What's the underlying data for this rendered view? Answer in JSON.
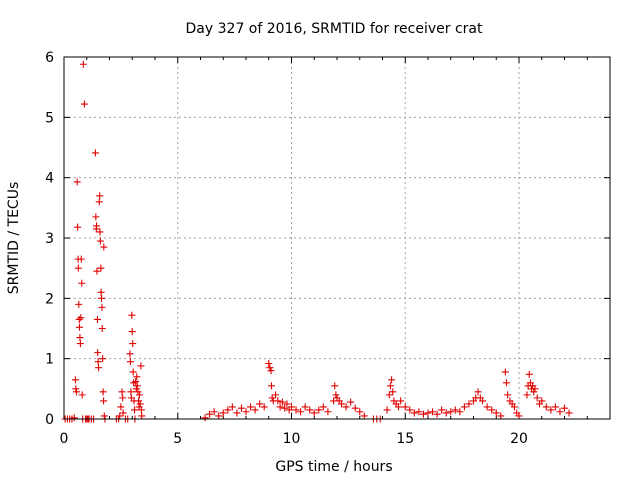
{
  "chart_data": {
    "type": "scatter",
    "title": "Day 327 of 2016, SRMTID for receiver crat",
    "xlabel": "GPS time / hours",
    "ylabel": "SRMTID / TECUs",
    "xlim": [
      0,
      24
    ],
    "ylim": [
      0,
      6
    ],
    "xticks": [
      "0",
      "5",
      "10",
      "15",
      "20"
    ],
    "yticks": [
      "0",
      "1",
      "2",
      "3",
      "4",
      "5",
      "6"
    ],
    "grid": true,
    "marker": "+",
    "color": "#e00000",
    "series": [
      {
        "name": "SRMTID",
        "points": [
          [
            0.05,
            0.0
          ],
          [
            0.15,
            0.0
          ],
          [
            0.25,
            0.0
          ],
          [
            0.35,
            0.0
          ],
          [
            0.45,
            0.02
          ],
          [
            0.5,
            0.65
          ],
          [
            0.52,
            0.5
          ],
          [
            0.55,
            0.45
          ],
          [
            0.58,
            3.93
          ],
          [
            0.6,
            3.18
          ],
          [
            0.62,
            2.65
          ],
          [
            0.63,
            2.5
          ],
          [
            0.65,
            1.9
          ],
          [
            0.67,
            1.65
          ],
          [
            0.68,
            1.52
          ],
          [
            0.7,
            1.35
          ],
          [
            0.72,
            1.25
          ],
          [
            0.74,
            1.68
          ],
          [
            0.76,
            2.65
          ],
          [
            0.78,
            2.25
          ],
          [
            0.8,
            0.4
          ],
          [
            0.82,
            0.0
          ],
          [
            0.85,
            5.88
          ],
          [
            0.9,
            5.22
          ],
          [
            0.95,
            0.0
          ],
          [
            1.0,
            0.0
          ],
          [
            1.05,
            0.0
          ],
          [
            1.1,
            0.0
          ],
          [
            1.2,
            0.0
          ],
          [
            1.3,
            0.0
          ],
          [
            1.38,
            4.41
          ],
          [
            1.4,
            3.35
          ],
          [
            1.42,
            3.15
          ],
          [
            1.43,
            3.2
          ],
          [
            1.45,
            2.45
          ],
          [
            1.47,
            1.65
          ],
          [
            1.48,
            1.1
          ],
          [
            1.5,
            0.95
          ],
          [
            1.52,
            0.85
          ],
          [
            1.55,
            3.6
          ],
          [
            1.57,
            3.7
          ],
          [
            1.58,
            3.1
          ],
          [
            1.6,
            2.95
          ],
          [
            1.62,
            2.5
          ],
          [
            1.63,
            2.1
          ],
          [
            1.65,
            2.0
          ],
          [
            1.67,
            1.85
          ],
          [
            1.68,
            1.5
          ],
          [
            1.7,
            1.0
          ],
          [
            1.72,
            0.45
          ],
          [
            1.74,
            0.3
          ],
          [
            1.75,
            2.85
          ],
          [
            1.77,
            0.05
          ],
          [
            1.8,
            0.0
          ],
          [
            2.3,
            0.0
          ],
          [
            2.4,
            0.0
          ],
          [
            2.45,
            0.05
          ],
          [
            2.5,
            0.2
          ],
          [
            2.55,
            0.45
          ],
          [
            2.58,
            0.35
          ],
          [
            2.6,
            0.1
          ],
          [
            2.7,
            0.0
          ],
          [
            2.8,
            0.0
          ],
          [
            2.9,
            1.08
          ],
          [
            2.92,
            0.95
          ],
          [
            2.94,
            0.45
          ],
          [
            2.96,
            0.35
          ],
          [
            2.98,
            1.72
          ],
          [
            3.0,
            1.45
          ],
          [
            3.02,
            1.25
          ],
          [
            3.04,
            0.78
          ],
          [
            3.06,
            0.6
          ],
          [
            3.08,
            0.3
          ],
          [
            3.1,
            0.15
          ],
          [
            3.12,
            0.0
          ],
          [
            3.15,
            0.62
          ],
          [
            3.18,
            0.5
          ],
          [
            3.2,
            0.7
          ],
          [
            3.22,
            0.55
          ],
          [
            3.25,
            0.45
          ],
          [
            3.28,
            0.3
          ],
          [
            3.3,
            0.2
          ],
          [
            3.32,
            0.4
          ],
          [
            3.35,
            0.25
          ],
          [
            3.38,
            0.88
          ],
          [
            3.4,
            0.15
          ],
          [
            3.42,
            0.05
          ],
          [
            6.2,
            0.02
          ],
          [
            6.4,
            0.08
          ],
          [
            6.6,
            0.12
          ],
          [
            6.8,
            0.05
          ],
          [
            7.0,
            0.1
          ],
          [
            7.2,
            0.15
          ],
          [
            7.4,
            0.2
          ],
          [
            7.6,
            0.1
          ],
          [
            7.8,
            0.18
          ],
          [
            8.0,
            0.12
          ],
          [
            8.2,
            0.2
          ],
          [
            8.4,
            0.15
          ],
          [
            8.6,
            0.25
          ],
          [
            8.8,
            0.2
          ],
          [
            9.0,
            0.92
          ],
          [
            9.05,
            0.85
          ],
          [
            9.1,
            0.8
          ],
          [
            9.12,
            0.55
          ],
          [
            9.15,
            0.35
          ],
          [
            9.2,
            0.3
          ],
          [
            9.3,
            0.4
          ],
          [
            9.4,
            0.3
          ],
          [
            9.5,
            0.2
          ],
          [
            9.6,
            0.28
          ],
          [
            9.7,
            0.18
          ],
          [
            9.8,
            0.25
          ],
          [
            9.9,
            0.15
          ],
          [
            10.0,
            0.2
          ],
          [
            10.2,
            0.15
          ],
          [
            10.4,
            0.12
          ],
          [
            10.6,
            0.2
          ],
          [
            10.8,
            0.15
          ],
          [
            11.0,
            0.1
          ],
          [
            11.2,
            0.15
          ],
          [
            11.4,
            0.2
          ],
          [
            11.6,
            0.12
          ],
          [
            11.85,
            0.3
          ],
          [
            11.9,
            0.55
          ],
          [
            11.95,
            0.4
          ],
          [
            12.0,
            0.35
          ],
          [
            12.1,
            0.3
          ],
          [
            12.2,
            0.25
          ],
          [
            12.4,
            0.2
          ],
          [
            12.6,
            0.28
          ],
          [
            12.8,
            0.18
          ],
          [
            13.0,
            0.12
          ],
          [
            13.2,
            0.05
          ],
          [
            13.6,
            0.0
          ],
          [
            13.75,
            0.0
          ],
          [
            13.9,
            0.0
          ],
          [
            14.2,
            0.15
          ],
          [
            14.3,
            0.4
          ],
          [
            14.35,
            0.55
          ],
          [
            14.4,
            0.65
          ],
          [
            14.45,
            0.45
          ],
          [
            14.5,
            0.3
          ],
          [
            14.6,
            0.25
          ],
          [
            14.7,
            0.2
          ],
          [
            14.8,
            0.3
          ],
          [
            15.0,
            0.2
          ],
          [
            15.2,
            0.15
          ],
          [
            15.4,
            0.1
          ],
          [
            15.6,
            0.12
          ],
          [
            15.8,
            0.08
          ],
          [
            16.0,
            0.1
          ],
          [
            16.2,
            0.12
          ],
          [
            16.4,
            0.08
          ],
          [
            16.6,
            0.15
          ],
          [
            16.8,
            0.1
          ],
          [
            17.0,
            0.12
          ],
          [
            17.2,
            0.15
          ],
          [
            17.4,
            0.12
          ],
          [
            17.6,
            0.2
          ],
          [
            17.8,
            0.25
          ],
          [
            18.0,
            0.3
          ],
          [
            18.1,
            0.35
          ],
          [
            18.2,
            0.45
          ],
          [
            18.3,
            0.35
          ],
          [
            18.4,
            0.3
          ],
          [
            18.6,
            0.2
          ],
          [
            18.8,
            0.15
          ],
          [
            19.0,
            0.1
          ],
          [
            19.2,
            0.05
          ],
          [
            19.4,
            0.78
          ],
          [
            19.45,
            0.6
          ],
          [
            19.5,
            0.4
          ],
          [
            19.6,
            0.3
          ],
          [
            19.7,
            0.25
          ],
          [
            19.8,
            0.2
          ],
          [
            19.9,
            0.1
          ],
          [
            20.0,
            0.05
          ],
          [
            20.35,
            0.4
          ],
          [
            20.4,
            0.55
          ],
          [
            20.45,
            0.74
          ],
          [
            20.5,
            0.6
          ],
          [
            20.55,
            0.5
          ],
          [
            20.6,
            0.55
          ],
          [
            20.65,
            0.45
          ],
          [
            20.7,
            0.5
          ],
          [
            20.8,
            0.35
          ],
          [
            20.9,
            0.25
          ],
          [
            21.0,
            0.3
          ],
          [
            21.2,
            0.2
          ],
          [
            21.4,
            0.15
          ],
          [
            21.6,
            0.2
          ],
          [
            21.8,
            0.12
          ],
          [
            22.0,
            0.18
          ],
          [
            22.2,
            0.1
          ]
        ]
      }
    ]
  }
}
